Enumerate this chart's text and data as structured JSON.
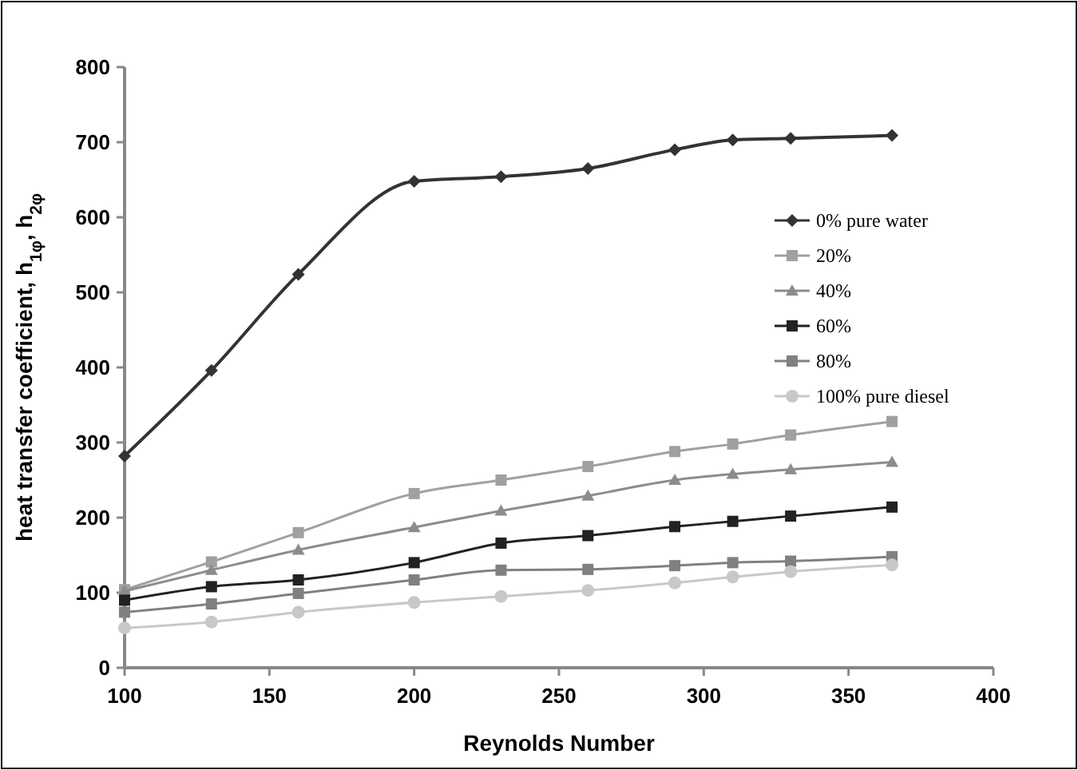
{
  "chart_data": {
    "type": "line",
    "xlabel": "Reynolds Number",
    "ylabel": "heat transfer coefficient, h$_{1φ}$, h$_{2φ}$",
    "x": [
      100,
      130,
      160,
      200,
      230,
      260,
      290,
      310,
      330,
      365
    ],
    "xlim": [
      100,
      400
    ],
    "xticks": [
      100,
      150,
      200,
      250,
      300,
      350,
      400
    ],
    "ylim": [
      0,
      800
    ],
    "yticks": [
      0,
      100,
      200,
      300,
      400,
      500,
      600,
      700,
      800
    ],
    "grid": false,
    "legend": "right",
    "series": [
      {
        "name": "0% pure water",
        "color": "#333333",
        "marker": "diamond",
        "values": [
          282,
          396,
          524,
          648,
          654,
          665,
          690,
          703,
          705,
          709
        ]
      },
      {
        "name": "20%",
        "color": "#a0a0a0",
        "marker": "square",
        "values": [
          104,
          141,
          180,
          232,
          250,
          268,
          288,
          298,
          310,
          328
        ]
      },
      {
        "name": "40%",
        "color": "#8c8c8c",
        "marker": "triangle",
        "values": [
          102,
          130,
          157,
          187,
          209,
          229,
          250,
          258,
          264,
          274
        ]
      },
      {
        "name": "60%",
        "color": "#222222",
        "marker": "square",
        "values": [
          90,
          108,
          117,
          140,
          166,
          176,
          188,
          195,
          202,
          214
        ]
      },
      {
        "name": "80%",
        "color": "#808080",
        "marker": "square",
        "values": [
          74,
          85,
          99,
          117,
          130,
          131,
          136,
          140,
          142,
          148
        ]
      },
      {
        "name": "100% pure diesel",
        "color": "#c8c8c8",
        "marker": "circle",
        "values": [
          53,
          61,
          74,
          87,
          95,
          103,
          113,
          121,
          128,
          137
        ]
      }
    ]
  }
}
